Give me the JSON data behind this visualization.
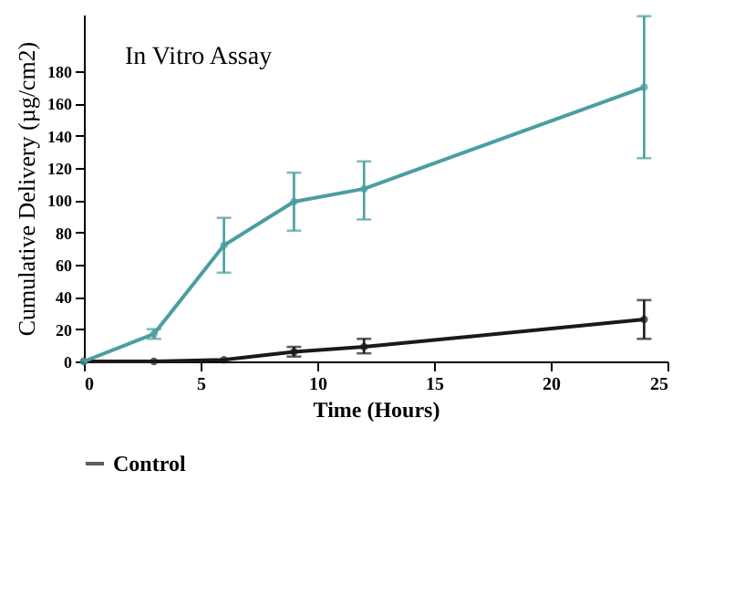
{
  "chart_data": {
    "type": "line",
    "title": "In Vitro Assay",
    "xlabel": "Time (Hours)",
    "ylabel": "Cumulative Delivery (µg/cm2)",
    "x": [
      0,
      3,
      6,
      9,
      12,
      24
    ],
    "series": [
      {
        "name": "Control",
        "color": "#1a1a1a",
        "values": [
          0,
          0,
          1,
          6,
          9,
          26
        ],
        "errors": [
          null,
          null,
          null,
          3,
          [
            5,
            14
          ],
          [
            14,
            38
          ]
        ]
      },
      {
        "color": "#4a9ea0",
        "values": [
          0,
          17,
          72,
          99,
          107,
          170
        ],
        "errors": [
          null,
          3,
          [
            55,
            89
          ],
          [
            81,
            117
          ],
          [
            88,
            124
          ],
          [
            126,
            214
          ]
        ]
      }
    ],
    "xlim": [
      0,
      25
    ],
    "xticks": [
      0,
      5,
      10,
      15,
      20,
      25
    ],
    "ylim": [
      0,
      215
    ],
    "yticks": [
      0,
      20,
      40,
      60,
      80,
      100,
      120,
      140,
      160,
      180
    ],
    "grid": false,
    "legend": "bottom",
    "marker": "circle",
    "line_style": "solid"
  }
}
